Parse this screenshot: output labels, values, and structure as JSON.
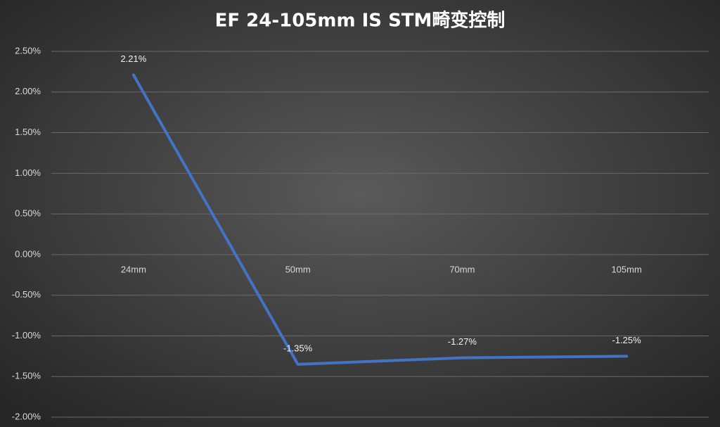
{
  "chart_data": {
    "type": "line",
    "title": "EF 24-105mm IS STM畸变控制",
    "categories": [
      "24mm",
      "50mm",
      "70mm",
      "105mm"
    ],
    "series": [
      {
        "color": "#4472c4",
        "values": [
          2.21,
          -1.35,
          -1.27,
          -1.25
        ],
        "value_labels": [
          "2.21%",
          "-1.35%",
          "-1.27%",
          "-1.25%"
        ]
      }
    ],
    "ylim": [
      -2,
      2.5
    ],
    "yticks": [
      {
        "value": -2,
        "label": "-2.00%"
      },
      {
        "value": -1.5,
        "label": "-1.50%"
      },
      {
        "value": -1,
        "label": "-1.00%"
      },
      {
        "value": -0.5,
        "label": "-0.50%"
      },
      {
        "value": 0,
        "label": "0.00%"
      },
      {
        "value": 0.5,
        "label": "0.50%"
      },
      {
        "value": 1,
        "label": "1.00%"
      },
      {
        "value": 1.5,
        "label": "1.50%"
      },
      {
        "value": 2,
        "label": "2.00%"
      },
      {
        "value": 2.5,
        "label": "2.50%"
      }
    ],
    "grid": true
  }
}
